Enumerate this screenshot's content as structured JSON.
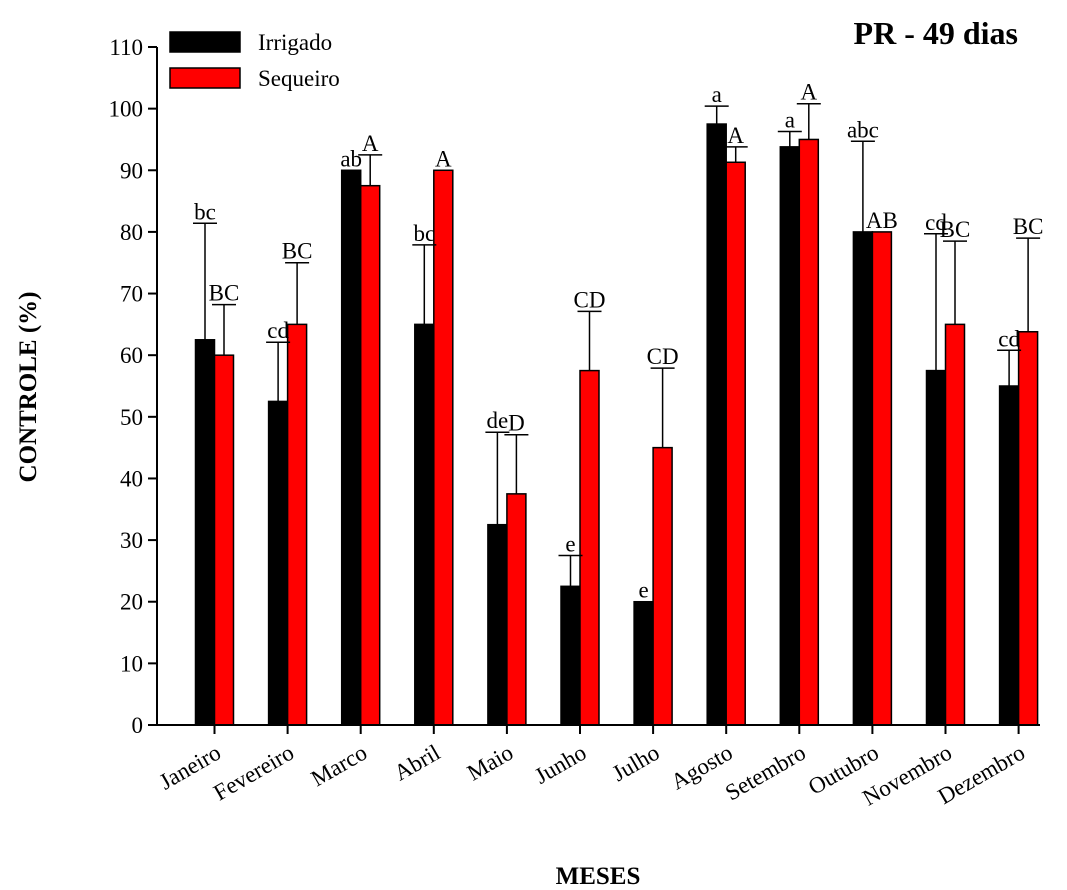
{
  "chart_data": {
    "type": "bar",
    "title": "PR - 49 dias",
    "xlabel": "MESES",
    "ylabel": "CONTROLE (%)",
    "ylim": [
      0,
      110
    ],
    "yticks": [
      0,
      10,
      20,
      30,
      40,
      50,
      60,
      70,
      80,
      90,
      100,
      110
    ],
    "legend_position": "top-left",
    "categories": [
      "Janeiro",
      "Fevereiro",
      "Marco",
      "Abril",
      "Maio",
      "Junho",
      "Julho",
      "Agosto",
      "Setembro",
      "Outubro",
      "Novembro",
      "Dezembro"
    ],
    "series": [
      {
        "name": "Irrigado",
        "color": "#000000",
        "values": [
          62.5,
          52.5,
          90,
          65,
          32.5,
          22.5,
          20,
          97.5,
          93.8,
          80,
          57.5,
          55
        ],
        "error": [
          18.9,
          9.6,
          0,
          12.9,
          15,
          5,
          0,
          2.9,
          2.5,
          14.7,
          22.2,
          5.8
        ],
        "labels": [
          "bc",
          "cd",
          "ab",
          "bc",
          "de",
          "e",
          "e",
          "a",
          "a",
          "abc",
          "cd",
          "cd"
        ]
      },
      {
        "name": "Sequeiro",
        "color": "#ff0000",
        "values": [
          60,
          65,
          87.5,
          90,
          37.5,
          57.5,
          45,
          91.3,
          95,
          80,
          65,
          63.8
        ],
        "error": [
          8.2,
          10,
          5,
          0,
          9.6,
          9.6,
          12.9,
          2.5,
          5.8,
          0,
          13.5,
          15.2
        ],
        "labels": [
          "BC",
          "BC",
          "A",
          "A",
          "D",
          "CD",
          "CD",
          "A",
          "A",
          "AB",
          "BC",
          "BC"
        ]
      }
    ]
  }
}
